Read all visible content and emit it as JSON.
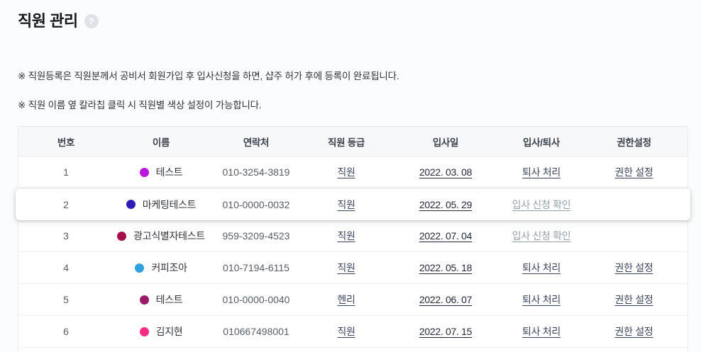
{
  "page": {
    "title": "직원 관리",
    "help_icon": "?"
  },
  "notices": [
    "※ 직원등록은 직원분께서 공비서 회원가입 후 입사신청을 하면, 샵주 허가 후에 등록이 완료됩니다.",
    "※ 직원 이름 옆 칼라칩 클릭 시 직원별 색상 설정이 가능합니다."
  ],
  "table": {
    "headers": [
      "번호",
      "이름",
      "연락처",
      "직원 등급",
      "입사일",
      "입사/퇴사",
      "권한설정"
    ],
    "rows": [
      {
        "no": "1",
        "color": "#bb16dd",
        "name": "테스트",
        "phone": "010-3254-3819",
        "grade": "직원",
        "join_date": "2022. 03. 08",
        "action": "퇴사 처리",
        "action_style": "normal",
        "permission": "권한 설정",
        "elevated": false
      },
      {
        "no": "2",
        "color": "#2d1cb5",
        "name": "마케팅테스트",
        "phone": "010-0000-0032",
        "grade": "직원",
        "join_date": "2022. 05. 29",
        "action": "입사 신청 확인",
        "action_style": "muted",
        "permission": "",
        "elevated": true
      },
      {
        "no": "3",
        "color": "#a60f4a",
        "name": "광고식별자테스트",
        "phone": "959-3209-4523",
        "grade": "직원",
        "join_date": "2022. 07. 04",
        "action": "입사 신청 확인",
        "action_style": "muted",
        "permission": "",
        "elevated": false
      },
      {
        "no": "4",
        "color": "#2fa1dc",
        "name": "커피조아",
        "phone": "010-7194-6115",
        "grade": "직원",
        "join_date": "2022. 05. 18",
        "action": "퇴사 처리",
        "action_style": "normal",
        "permission": "권한 설정",
        "elevated": false
      },
      {
        "no": "5",
        "color": "#9c1b68",
        "name": "테스트",
        "phone": "010-0000-0040",
        "grade": "헨리",
        "join_date": "2022. 06. 07",
        "action": "퇴사 처리",
        "action_style": "normal",
        "permission": "권한 설정",
        "elevated": false
      },
      {
        "no": "6",
        "color": "#f52c83",
        "name": "김지현",
        "phone": "010667498001",
        "grade": "직원",
        "join_date": "2022. 07. 15",
        "action": "퇴사 처리",
        "action_style": "normal",
        "permission": "권한 설정",
        "elevated": false
      }
    ],
    "partial_row": {
      "color": "#6a1b9a"
    }
  }
}
